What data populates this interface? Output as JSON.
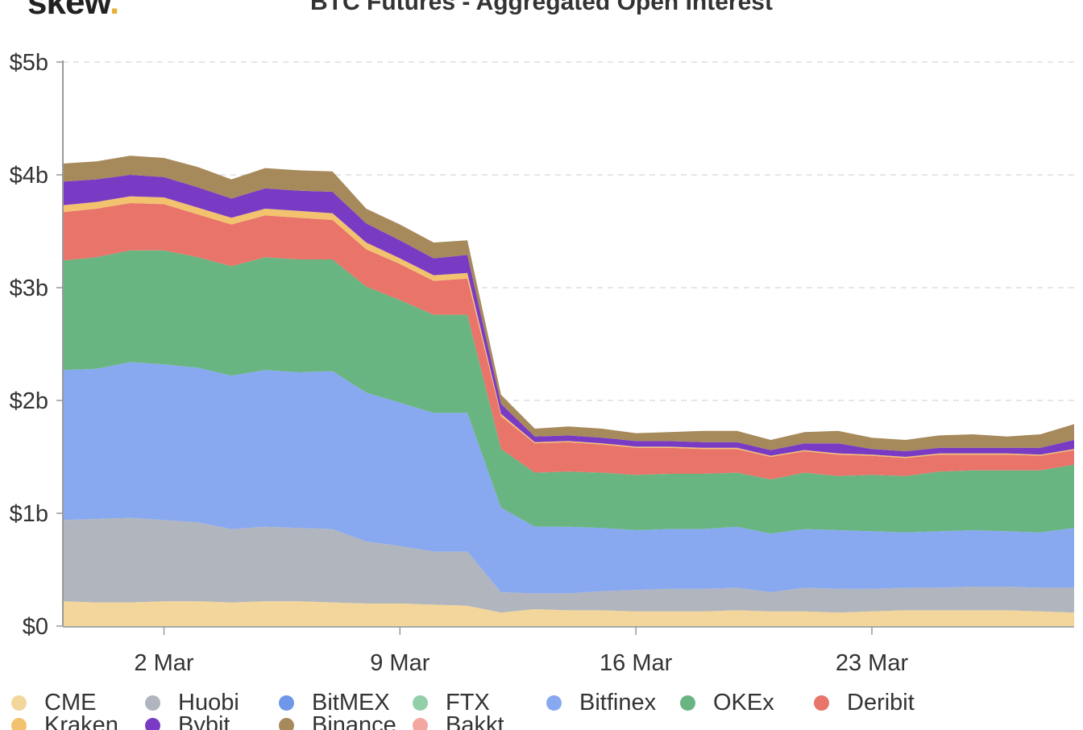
{
  "header": {
    "logo_text": "skew",
    "logo_dot": ".",
    "title": "BTC Futures - Aggregated Open Interest"
  },
  "chart_data": {
    "type": "area",
    "stacked": true,
    "title": "BTC Futures - Aggregated Open Interest",
    "xlabel": "",
    "ylabel": "",
    "x": [
      "Feb 28",
      "Feb 29",
      "Mar 1",
      "Mar 2",
      "Mar 3",
      "Mar 4",
      "Mar 5",
      "Mar 6",
      "Mar 7",
      "Mar 8",
      "Mar 9",
      "Mar 10",
      "Mar 11",
      "Mar 12",
      "Mar 13",
      "Mar 14",
      "Mar 15",
      "Mar 16",
      "Mar 17",
      "Mar 18",
      "Mar 19",
      "Mar 20",
      "Mar 21",
      "Mar 22",
      "Mar 23",
      "Mar 24",
      "Mar 25",
      "Mar 26",
      "Mar 27",
      "Mar 28",
      "Mar 29"
    ],
    "x_ticks": [
      "2 Mar",
      "9 Mar",
      "16 Mar",
      "23 Mar"
    ],
    "ylim": [
      0,
      5
    ],
    "y_unit": "billions USD",
    "y_ticks": [
      "$0",
      "$1b",
      "$2b",
      "$3b",
      "$4b",
      "$5b"
    ],
    "grid": "horizontal dashed",
    "legend_position": "bottom",
    "series": [
      {
        "name": "CME",
        "color": "#f2d69c",
        "values": [
          0.22,
          0.21,
          0.21,
          0.22,
          0.22,
          0.21,
          0.22,
          0.22,
          0.21,
          0.2,
          0.2,
          0.19,
          0.18,
          0.12,
          0.15,
          0.14,
          0.14,
          0.13,
          0.13,
          0.13,
          0.14,
          0.13,
          0.13,
          0.12,
          0.13,
          0.14,
          0.14,
          0.14,
          0.14,
          0.13,
          0.12
        ]
      },
      {
        "name": "Huobi",
        "color": "#b1b5bd",
        "values": [
          0.72,
          0.74,
          0.75,
          0.72,
          0.7,
          0.65,
          0.66,
          0.65,
          0.65,
          0.55,
          0.51,
          0.47,
          0.48,
          0.18,
          0.14,
          0.15,
          0.17,
          0.19,
          0.2,
          0.2,
          0.2,
          0.17,
          0.21,
          0.21,
          0.2,
          0.2,
          0.2,
          0.21,
          0.21,
          0.21,
          0.22
        ]
      },
      {
        "name": "BitMEX",
        "color": "#6e97ea",
        "values": [
          0,
          0,
          0,
          0,
          0,
          0,
          0,
          0,
          0,
          0,
          0,
          0,
          0,
          0,
          0,
          0,
          0,
          0,
          0,
          0,
          0,
          0,
          0,
          0,
          0,
          0,
          0,
          0,
          0,
          0,
          0
        ]
      },
      {
        "name": "FTX",
        "color": "#92cfa8",
        "values": [
          0,
          0,
          0,
          0,
          0,
          0,
          0,
          0,
          0,
          0,
          0,
          0,
          0,
          0,
          0,
          0,
          0,
          0,
          0,
          0,
          0,
          0,
          0,
          0,
          0,
          0,
          0,
          0,
          0,
          0,
          0
        ]
      },
      {
        "name": "Bitfinex",
        "color": "#88a8f0",
        "values": [
          1.33,
          1.33,
          1.38,
          1.38,
          1.37,
          1.36,
          1.39,
          1.38,
          1.4,
          1.32,
          1.27,
          1.23,
          1.23,
          0.75,
          0.59,
          0.59,
          0.56,
          0.53,
          0.53,
          0.53,
          0.54,
          0.52,
          0.52,
          0.52,
          0.51,
          0.49,
          0.5,
          0.5,
          0.49,
          0.49,
          0.53
        ]
      },
      {
        "name": "OKEx",
        "color": "#69b582",
        "values": [
          0.97,
          0.99,
          0.99,
          1.01,
          0.98,
          0.97,
          1.0,
          1.0,
          0.99,
          0.94,
          0.91,
          0.87,
          0.87,
          0.52,
          0.48,
          0.49,
          0.49,
          0.49,
          0.49,
          0.49,
          0.48,
          0.48,
          0.5,
          0.48,
          0.5,
          0.5,
          0.53,
          0.53,
          0.54,
          0.55,
          0.56
        ]
      },
      {
        "name": "Deribit",
        "color": "#e8746a",
        "values": [
          0.43,
          0.43,
          0.42,
          0.41,
          0.38,
          0.37,
          0.37,
          0.37,
          0.35,
          0.33,
          0.32,
          0.3,
          0.32,
          0.29,
          0.26,
          0.26,
          0.25,
          0.24,
          0.23,
          0.22,
          0.21,
          0.2,
          0.19,
          0.19,
          0.17,
          0.16,
          0.15,
          0.14,
          0.14,
          0.13,
          0.13
        ]
      },
      {
        "name": "Kraken",
        "color": "#f3c26e",
        "values": [
          0.06,
          0.06,
          0.06,
          0.06,
          0.06,
          0.06,
          0.06,
          0.06,
          0.06,
          0.06,
          0.05,
          0.05,
          0.05,
          0.02,
          0.01,
          0.01,
          0.01,
          0.01,
          0.01,
          0.01,
          0.01,
          0.01,
          0.01,
          0.01,
          0.01,
          0.01,
          0.01,
          0.01,
          0.01,
          0.01,
          0.01
        ]
      },
      {
        "name": "Bybit",
        "color": "#7a3bc4",
        "values": [
          0.21,
          0.2,
          0.19,
          0.18,
          0.18,
          0.17,
          0.18,
          0.18,
          0.19,
          0.17,
          0.16,
          0.15,
          0.16,
          0.09,
          0.05,
          0.05,
          0.05,
          0.05,
          0.05,
          0.05,
          0.05,
          0.05,
          0.06,
          0.09,
          0.05,
          0.05,
          0.05,
          0.05,
          0.05,
          0.06,
          0.08
        ]
      },
      {
        "name": "Binance",
        "color": "#a68a5b",
        "values": [
          0.16,
          0.16,
          0.17,
          0.17,
          0.18,
          0.17,
          0.18,
          0.18,
          0.18,
          0.13,
          0.14,
          0.14,
          0.13,
          0.08,
          0.07,
          0.08,
          0.08,
          0.07,
          0.08,
          0.1,
          0.1,
          0.09,
          0.1,
          0.11,
          0.1,
          0.1,
          0.11,
          0.12,
          0.1,
          0.12,
          0.14
        ]
      },
      {
        "name": "Bakkt",
        "color": "#f4a6a0",
        "values": [
          0,
          0,
          0,
          0,
          0,
          0,
          0,
          0,
          0,
          0,
          0,
          0,
          0,
          0,
          0,
          0,
          0,
          0,
          0,
          0,
          0,
          0,
          0,
          0,
          0,
          0,
          0,
          0,
          0,
          0,
          0
        ]
      }
    ]
  }
}
